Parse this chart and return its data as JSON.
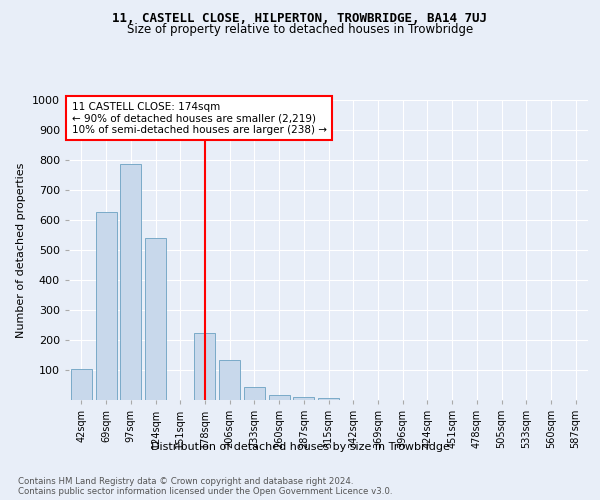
{
  "title1": "11, CASTELL CLOSE, HILPERTON, TROWBRIDGE, BA14 7UJ",
  "title2": "Size of property relative to detached houses in Trowbridge",
  "xlabel": "Distribution of detached houses by size in Trowbridge",
  "ylabel": "Number of detached properties",
  "bin_labels": [
    "42sqm",
    "69sqm",
    "97sqm",
    "124sqm",
    "151sqm",
    "178sqm",
    "206sqm",
    "233sqm",
    "260sqm",
    "287sqm",
    "315sqm",
    "342sqm",
    "369sqm",
    "396sqm",
    "424sqm",
    "451sqm",
    "478sqm",
    "505sqm",
    "533sqm",
    "560sqm",
    "587sqm"
  ],
  "bar_values": [
    103,
    628,
    787,
    539,
    0,
    222,
    135,
    43,
    18,
    10,
    8,
    0,
    0,
    0,
    0,
    0,
    0,
    0,
    0,
    0,
    0
  ],
  "bar_color": "#c8d8eb",
  "bar_edge_color": "#7aaac8",
  "vline_color": "red",
  "annotation_title": "11 CASTELL CLOSE: 174sqm",
  "annotation_line1": "← 90% of detached houses are smaller (2,219)",
  "annotation_line2": "10% of semi-detached houses are larger (238) →",
  "ylim": [
    0,
    1000
  ],
  "yticks": [
    0,
    100,
    200,
    300,
    400,
    500,
    600,
    700,
    800,
    900,
    1000
  ],
  "footer1": "Contains HM Land Registry data © Crown copyright and database right 2024.",
  "footer2": "Contains public sector information licensed under the Open Government Licence v3.0.",
  "bg_color": "#e8eef8",
  "plot_bg_color": "#e8eef8"
}
